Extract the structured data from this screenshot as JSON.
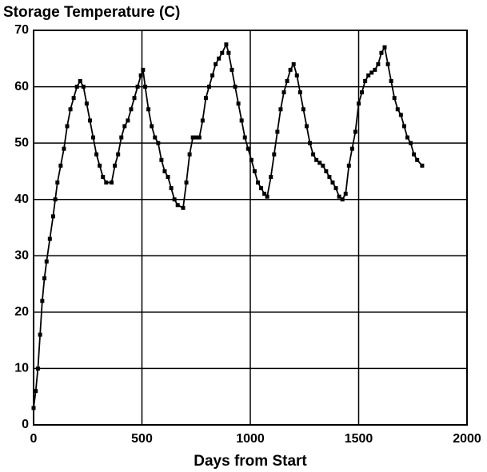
{
  "chart_data": {
    "type": "line",
    "title": "Storage Temperature (C)",
    "x_label": "Days from Start",
    "x": [
      0,
      10,
      20,
      30,
      40,
      50,
      60,
      75,
      90,
      100,
      110,
      125,
      140,
      155,
      170,
      185,
      200,
      215,
      230,
      245,
      260,
      275,
      290,
      305,
      320,
      335,
      360,
      375,
      390,
      405,
      420,
      435,
      450,
      465,
      480,
      495,
      505,
      515,
      530,
      545,
      560,
      575,
      590,
      605,
      620,
      635,
      650,
      665,
      690,
      705,
      720,
      735,
      750,
      765,
      780,
      795,
      810,
      825,
      840,
      855,
      870,
      889,
      900,
      915,
      930,
      945,
      960,
      975,
      990,
      1005,
      1020,
      1035,
      1050,
      1065,
      1078,
      1095,
      1110,
      1125,
      1140,
      1155,
      1170,
      1185,
      1200,
      1215,
      1230,
      1245,
      1260,
      1275,
      1290,
      1305,
      1320,
      1335,
      1350,
      1365,
      1380,
      1395,
      1410,
      1425,
      1440,
      1455,
      1470,
      1485,
      1500,
      1515,
      1530,
      1545,
      1560,
      1575,
      1590,
      1605,
      1620,
      1635,
      1650,
      1665,
      1680,
      1695,
      1710,
      1725,
      1740,
      1755,
      1770,
      1793
    ],
    "series": [
      {
        "name": "Temperature",
        "color": "#000000",
        "values": [
          3,
          6,
          10,
          16,
          22,
          26,
          29,
          33,
          37,
          40,
          43,
          46,
          49,
          53,
          56,
          58,
          60,
          61,
          60,
          57,
          54,
          51,
          48,
          46,
          44,
          43,
          43,
          46,
          48,
          51,
          53,
          54,
          56,
          58,
          60,
          62,
          63,
          60,
          56,
          53,
          51,
          50,
          47,
          45,
          44,
          42,
          40,
          39,
          38.5,
          43,
          48,
          51,
          51,
          51,
          54,
          58,
          60,
          62,
          64,
          65,
          66,
          67.5,
          66,
          63,
          60,
          57,
          54,
          51,
          49,
          47,
          45,
          43,
          42,
          41,
          40.5,
          44,
          48,
          52,
          56,
          59,
          61,
          63,
          64,
          62,
          59,
          56,
          53,
          50,
          48,
          47,
          46.5,
          46,
          45,
          44,
          43,
          42,
          40.5,
          40,
          41,
          46,
          49,
          52,
          57,
          59,
          61,
          62,
          62.5,
          63,
          64,
          66,
          67,
          64,
          61,
          58,
          56,
          55,
          53,
          51,
          50,
          48,
          47,
          46
        ]
      }
    ],
    "xlim": [
      0,
      2000
    ],
    "xticks": [
      0,
      500,
      1000,
      1500,
      2000
    ],
    "ylim": [
      0,
      70
    ],
    "yticks": [
      0,
      10,
      20,
      30,
      40,
      50,
      60,
      70
    ],
    "grid": true
  }
}
